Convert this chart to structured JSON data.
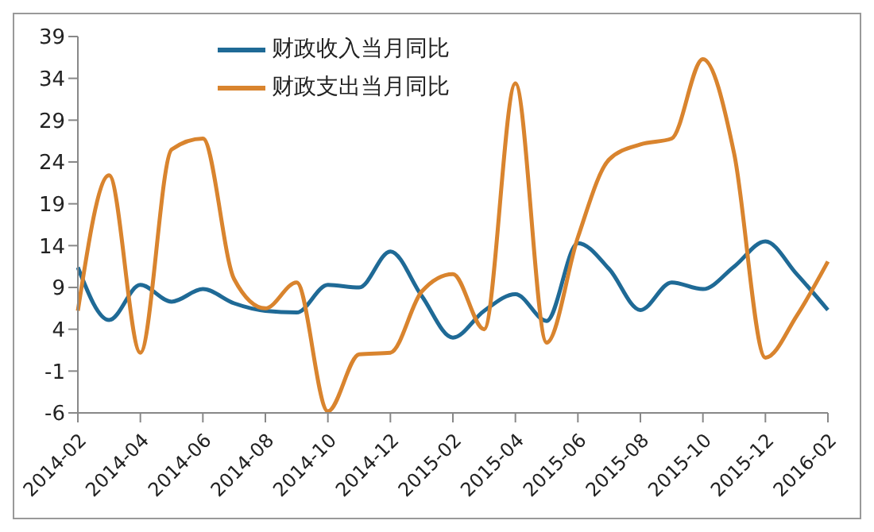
{
  "chart_data": {
    "type": "line",
    "categories": [
      "2014-02",
      null,
      "2014-04",
      null,
      "2014-06",
      null,
      "2014-08",
      null,
      "2014-10",
      null,
      "2014-12",
      null,
      "2015-02",
      null,
      "2015-04",
      null,
      "2015-06",
      null,
      "2015-08",
      null,
      "2015-10",
      null,
      "2015-12",
      null,
      "2016-02"
    ],
    "series": [
      {
        "name": "财政收入当月同比",
        "color": "#1f6a96",
        "values": [
          11.4,
          5.1,
          9.3,
          7.3,
          8.8,
          7.1,
          6.2,
          6.0,
          9.3,
          9.0,
          13.3,
          8.0,
          3.0,
          6.2,
          8.2,
          5.0,
          14.3,
          11.2,
          6.3,
          9.6,
          8.8,
          11.5,
          14.5,
          10.6,
          6.3
        ]
      },
      {
        "name": "财政支出当月同比",
        "color": "#d9842e",
        "values": [
          6.2,
          22.4,
          1.2,
          25.5,
          26.8,
          10.0,
          6.5,
          9.6,
          -5.8,
          1.0,
          1.2,
          8.5,
          10.6,
          4.0,
          33.4,
          2.4,
          15.0,
          24.3,
          26.1,
          26.8,
          36.3,
          25.0,
          0.6,
          5.6,
          12.1
        ]
      }
    ],
    "ylim": [
      -6,
      39
    ],
    "yticks": [
      -6,
      -1,
      4,
      9,
      14,
      19,
      24,
      29,
      34,
      39
    ],
    "legend": "top",
    "marker": "none",
    "line_style": "solid"
  }
}
